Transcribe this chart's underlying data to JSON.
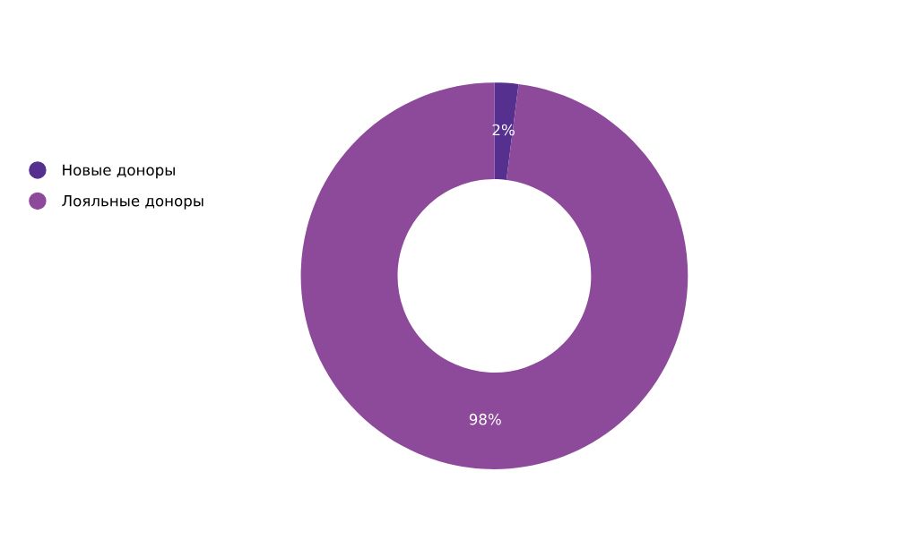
{
  "chart_data": {
    "type": "donut",
    "categories": [
      "Новые доноры",
      "Лояльные доноры"
    ],
    "values": [
      2,
      98
    ],
    "colors": [
      "#55308f",
      "#8d4a9a"
    ],
    "data_labels": true,
    "value_labels": [
      "2%",
      "98%"
    ],
    "legend": "left"
  }
}
